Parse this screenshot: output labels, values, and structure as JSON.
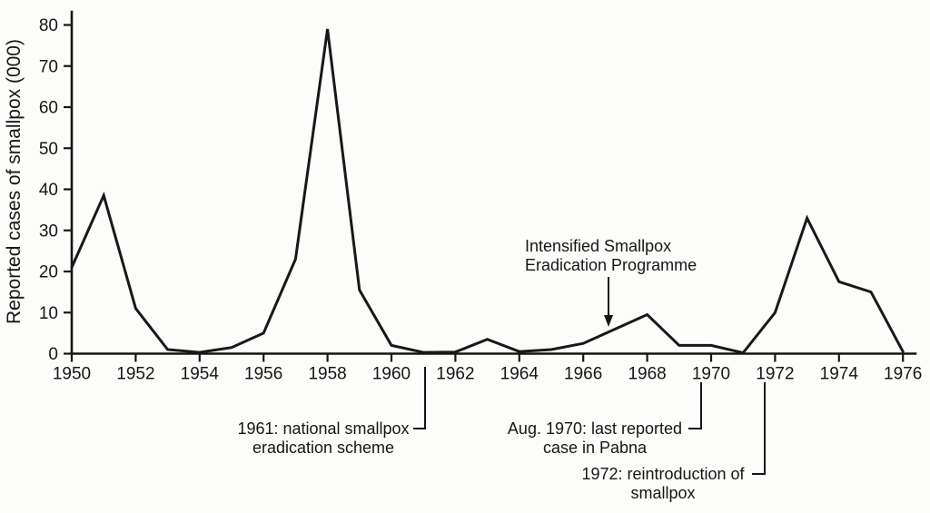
{
  "chart_data": {
    "type": "line",
    "title": "",
    "xlabel": "",
    "ylabel": "Reported cases of smallpox (000)",
    "ylim": [
      0,
      80
    ],
    "grid": false,
    "legend": null,
    "y_ticks": [
      0,
      10,
      20,
      30,
      40,
      50,
      60,
      70,
      80
    ],
    "x_tick_years": [
      1950,
      1952,
      1954,
      1956,
      1958,
      1960,
      1962,
      1964,
      1966,
      1968,
      1970,
      1972,
      1974,
      1976
    ],
    "x": [
      1950,
      1951,
      1952,
      1953,
      1954,
      1955,
      1956,
      1957,
      1958,
      1959,
      1960,
      1961,
      1962,
      1963,
      1964,
      1965,
      1966,
      1967,
      1968,
      1969,
      1970,
      1971,
      1972,
      1973,
      1974,
      1975,
      1976
    ],
    "values": [
      21,
      38.5,
      11,
      1,
      0.3,
      1.5,
      5,
      23,
      79,
      15.5,
      2,
      0.3,
      0.4,
      3.5,
      0.5,
      1,
      2.5,
      6,
      9.5,
      2,
      2,
      0.2,
      10,
      33,
      17.5,
      15,
      0.5
    ],
    "annotations": [
      {
        "id": "intensified-programme",
        "lines": [
          "Intensified Smallpox",
          "Eradication Programme"
        ],
        "points_to_year": 1967
      },
      {
        "id": "scheme-1961",
        "lines": [
          "1961: national smallpox",
          "eradication scheme"
        ],
        "year": 1961
      },
      {
        "id": "pabna-1970",
        "lines": [
          "Aug. 1970: last reported",
          "case in Pabna"
        ],
        "year": 1970
      },
      {
        "id": "reintroduction-1972",
        "lines": [
          "1972: reintroduction of",
          "smallpox"
        ],
        "year": 1972
      }
    ]
  }
}
